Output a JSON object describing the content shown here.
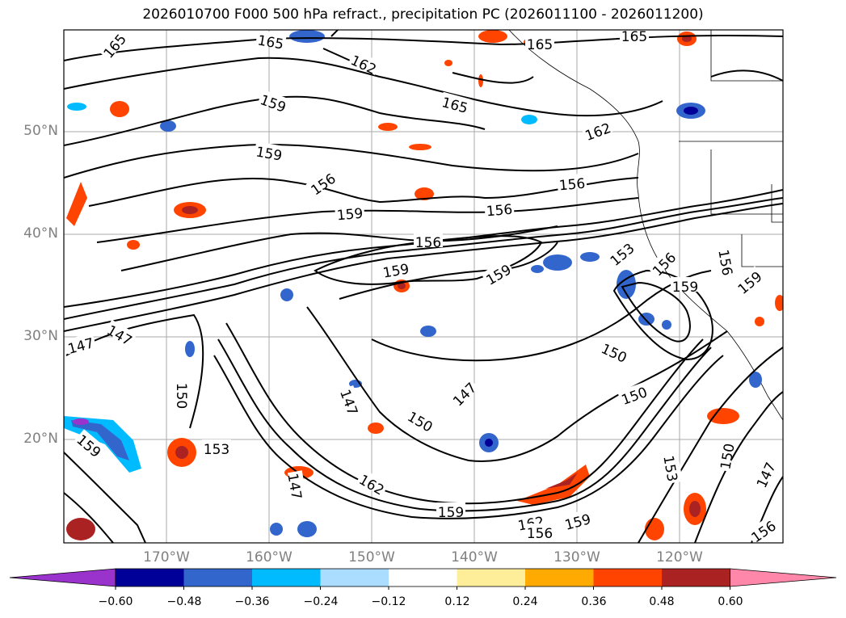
{
  "title": "2026010700 F000 500 hPa refract., precipitation PC (2026011100 - 2026011200)",
  "lat_labels": [
    "50°N",
    "40°N",
    "30°N",
    "20°N"
  ],
  "lon_labels": [
    "170°W",
    "160°W",
    "150°W",
    "140°W",
    "130°W",
    "120°W"
  ],
  "contour_labels": [
    "165",
    "165",
    "165",
    "165",
    "162",
    "159",
    "165",
    "162",
    "159",
    "156",
    "156",
    "159",
    "156",
    "156",
    "153",
    "156",
    "159",
    "159",
    "159",
    "156",
    "159",
    "147",
    "147",
    "150",
    "147",
    "147",
    "150",
    "150",
    "150",
    "153",
    "159",
    "162",
    "162",
    "159",
    "156",
    "153",
    "150",
    "147",
    "156",
    "159",
    "147"
  ],
  "colorbar": {
    "colors": [
      "#9933cc",
      "#000099",
      "#3366cc",
      "#00bbff",
      "#aaddff",
      "#ffffff",
      "#ffee99",
      "#ffaa00",
      "#ff4400",
      "#aa2222",
      "#ff88aa"
    ],
    "ticks": [
      "−0.60",
      "−0.48",
      "−0.36",
      "−0.24",
      "−0.12",
      "0.12",
      "0.24",
      "0.36",
      "0.48",
      "0.60"
    ]
  }
}
